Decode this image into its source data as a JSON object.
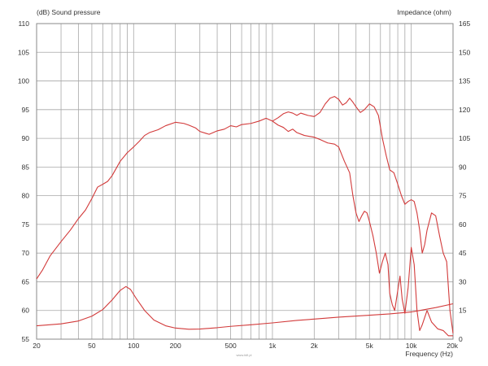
{
  "chart_data": {
    "type": "line",
    "left_axis_label": "(dB)  Sound pressure",
    "right_axis_label": "Impedance  (ohm)",
    "xlabel": "Frequency  (Hz)",
    "x_scale": "log",
    "xlim": [
      20,
      20000
    ],
    "ylim_left": [
      55,
      110
    ],
    "ylim_right": [
      0,
      165
    ],
    "x_ticks": [
      {
        "value": 20,
        "label": "20"
      },
      {
        "value": 50,
        "label": "50"
      },
      {
        "value": 100,
        "label": "100"
      },
      {
        "value": 200,
        "label": "200"
      },
      {
        "value": 500,
        "label": "500"
      },
      {
        "value": 1000,
        "label": "1k"
      },
      {
        "value": 2000,
        "label": "2k"
      },
      {
        "value": 5000,
        "label": "5k"
      },
      {
        "value": 10000,
        "label": "10k"
      },
      {
        "value": 20000,
        "label": "20k"
      }
    ],
    "left_ticks": [
      55,
      60,
      65,
      70,
      75,
      80,
      85,
      90,
      95,
      100,
      105,
      110
    ],
    "right_ticks": [
      0,
      15,
      30,
      45,
      60,
      75,
      90,
      105,
      120,
      135,
      150,
      165
    ],
    "grid": true,
    "line_color": "#d23a3a",
    "grid_color": "#a8a8a8",
    "watermark": "www.hifi.pl",
    "series": [
      {
        "axis": "left",
        "points": [
          [
            20,
            65.5
          ],
          [
            22,
            67
          ],
          [
            25,
            69.5
          ],
          [
            30,
            72
          ],
          [
            35,
            74
          ],
          [
            40,
            76
          ],
          [
            45,
            77.5
          ],
          [
            50,
            79.5
          ],
          [
            55,
            81.5
          ],
          [
            60,
            82
          ],
          [
            65,
            82.5
          ],
          [
            70,
            83.5
          ],
          [
            80,
            86
          ],
          [
            90,
            87.5
          ],
          [
            100,
            88.5
          ],
          [
            110,
            89.5
          ],
          [
            120,
            90.5
          ],
          [
            130,
            91
          ],
          [
            150,
            91.5
          ],
          [
            170,
            92.2
          ],
          [
            200,
            92.8
          ],
          [
            230,
            92.6
          ],
          [
            250,
            92.3
          ],
          [
            280,
            91.8
          ],
          [
            300,
            91.2
          ],
          [
            350,
            90.7
          ],
          [
            400,
            91.3
          ],
          [
            450,
            91.6
          ],
          [
            500,
            92.2
          ],
          [
            550,
            92.0
          ],
          [
            600,
            92.4
          ],
          [
            700,
            92.6
          ],
          [
            800,
            93.0
          ],
          [
            900,
            93.5
          ],
          [
            1000,
            93.0
          ],
          [
            1100,
            92.3
          ],
          [
            1200,
            91.9
          ],
          [
            1300,
            91.2
          ],
          [
            1400,
            91.6
          ],
          [
            1500,
            91.0
          ],
          [
            1700,
            90.5
          ],
          [
            2000,
            90.2
          ],
          [
            2200,
            89.8
          ],
          [
            2500,
            89.2
          ],
          [
            2800,
            89.0
          ],
          [
            3000,
            88.5
          ],
          [
            3300,
            86
          ],
          [
            3600,
            84
          ],
          [
            3800,
            80
          ],
          [
            4000,
            77
          ],
          [
            4200,
            75.5
          ],
          [
            4400,
            76.5
          ],
          [
            4600,
            77.3
          ],
          [
            4800,
            77
          ],
          [
            5000,
            75.5
          ],
          [
            5300,
            73
          ],
          [
            5600,
            70
          ],
          [
            5900,
            66.5
          ],
          [
            6200,
            68.5
          ],
          [
            6500,
            70
          ],
          [
            6800,
            68
          ],
          [
            7000,
            63
          ],
          [
            7300,
            61
          ],
          [
            7600,
            60
          ],
          [
            8000,
            63.5
          ],
          [
            8300,
            66
          ],
          [
            8600,
            62
          ],
          [
            9000,
            59.5
          ],
          [
            9500,
            64
          ],
          [
            10000,
            71
          ],
          [
            10500,
            68
          ],
          [
            11000,
            60
          ],
          [
            11500,
            56.5
          ],
          [
            12000,
            57.5
          ],
          [
            13000,
            60
          ],
          [
            14000,
            58
          ],
          [
            15500,
            56.8
          ],
          [
            17000,
            56.5
          ],
          [
            18500,
            55.6
          ],
          [
            20000,
            55.6
          ]
        ]
      },
      {
        "axis": "left",
        "points": [
          [
            1000,
            93.0
          ],
          [
            1100,
            93.6
          ],
          [
            1200,
            94.3
          ],
          [
            1300,
            94.6
          ],
          [
            1400,
            94.4
          ],
          [
            1500,
            94.0
          ],
          [
            1600,
            94.4
          ],
          [
            1800,
            94.0
          ],
          [
            2000,
            93.8
          ],
          [
            2200,
            94.5
          ],
          [
            2400,
            96
          ],
          [
            2600,
            97
          ],
          [
            2800,
            97.3
          ],
          [
            3000,
            96.8
          ],
          [
            3200,
            95.8
          ],
          [
            3400,
            96.2
          ],
          [
            3600,
            97.0
          ],
          [
            3800,
            96.3
          ],
          [
            4000,
            95.5
          ],
          [
            4300,
            94.5
          ],
          [
            4600,
            95.0
          ],
          [
            5000,
            96.0
          ],
          [
            5400,
            95.5
          ],
          [
            5800,
            94
          ],
          [
            6200,
            90
          ],
          [
            6600,
            87
          ],
          [
            7000,
            84.5
          ],
          [
            7500,
            84
          ],
          [
            8000,
            82
          ],
          [
            8500,
            80
          ],
          [
            9000,
            78.5
          ],
          [
            9500,
            79
          ],
          [
            10000,
            79.3
          ],
          [
            10500,
            79
          ],
          [
            11000,
            77
          ],
          [
            11500,
            74
          ],
          [
            12000,
            70
          ],
          [
            12500,
            71.5
          ],
          [
            13000,
            74
          ],
          [
            14000,
            77
          ],
          [
            15000,
            76.5
          ],
          [
            16000,
            73
          ],
          [
            17000,
            70
          ],
          [
            18000,
            68.5
          ],
          [
            19000,
            60
          ],
          [
            20000,
            56
          ]
        ]
      },
      {
        "axis": "right",
        "points": [
          [
            20,
            7
          ],
          [
            30,
            8
          ],
          [
            40,
            9.5
          ],
          [
            50,
            12
          ],
          [
            60,
            15.5
          ],
          [
            70,
            20.5
          ],
          [
            80,
            25.5
          ],
          [
            88,
            27.5
          ],
          [
            95,
            26
          ],
          [
            105,
            21
          ],
          [
            120,
            15
          ],
          [
            140,
            10
          ],
          [
            170,
            7
          ],
          [
            200,
            5.8
          ],
          [
            250,
            5.2
          ],
          [
            300,
            5.3
          ],
          [
            400,
            6
          ],
          [
            500,
            6.7
          ],
          [
            700,
            7.5
          ],
          [
            1000,
            8.5
          ],
          [
            1500,
            9.8
          ],
          [
            2000,
            10.5
          ],
          [
            3000,
            11.5
          ],
          [
            5000,
            12.5
          ],
          [
            7000,
            13.2
          ],
          [
            10000,
            14.2
          ],
          [
            15000,
            16.5
          ],
          [
            20000,
            18.5
          ]
        ]
      }
    ]
  }
}
